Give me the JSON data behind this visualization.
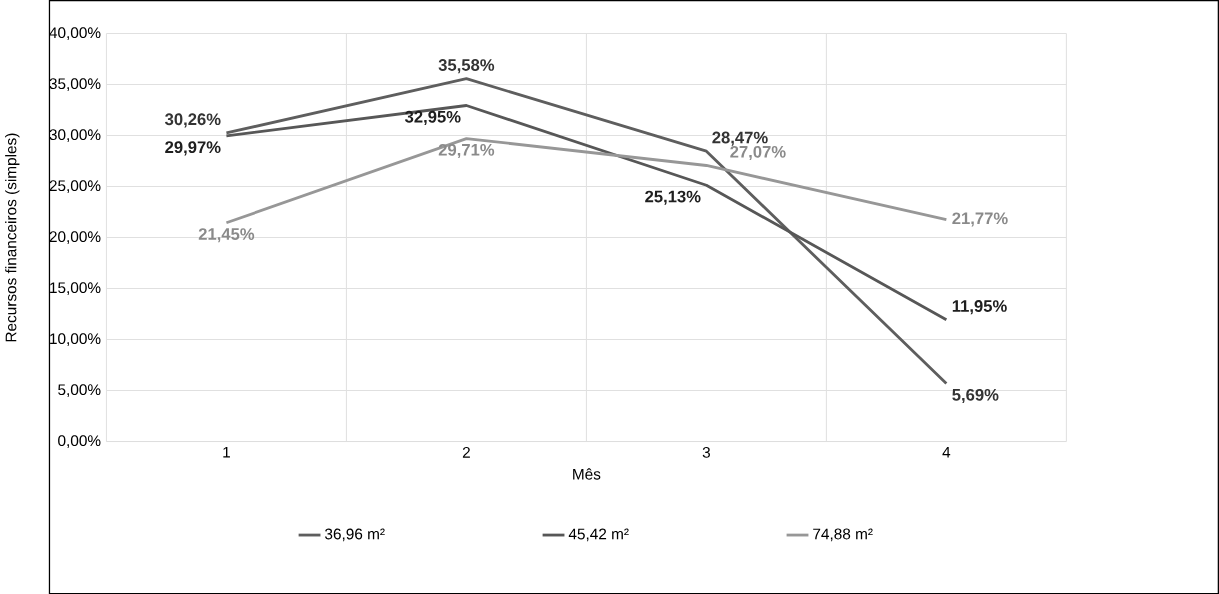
{
  "chart_data": {
    "type": "line",
    "xlabel": "Mês",
    "ylabel": "Recursos financeiros (simples)",
    "categories": [
      "1",
      "2",
      "3",
      "4"
    ],
    "series": [
      {
        "name": "36,96 m²",
        "color": "#5e5e5e",
        "values": [
          30.26,
          35.58,
          28.47,
          5.69
        ],
        "value_labels": [
          "30,26%",
          "35,58%",
          "28,47%",
          "5,69%"
        ]
      },
      {
        "name": "45,42 m²",
        "color": "#575757",
        "values": [
          29.97,
          32.95,
          25.13,
          11.95
        ],
        "value_labels": [
          "29,97%",
          "32,95%",
          "25,13%",
          "11,95%"
        ]
      },
      {
        "name": "74,88 m²",
        "color": "#979797",
        "values": [
          21.45,
          29.71,
          27.07,
          21.77
        ],
        "value_labels": [
          "21,45%",
          "29,71%",
          "27,07%",
          "21,77%"
        ]
      }
    ],
    "ylim": [
      0,
      40
    ],
    "yticks": [
      {
        "value": 0,
        "label": "0,00%"
      },
      {
        "value": 5,
        "label": "5,00%"
      },
      {
        "value": 10,
        "label": "10,00%"
      },
      {
        "value": 15,
        "label": "15,00%"
      },
      {
        "value": 20,
        "label": "20,00%"
      },
      {
        "value": 25,
        "label": "25,00%"
      },
      {
        "value": 30,
        "label": "30,00%"
      },
      {
        "value": 35,
        "label": "35,00%"
      },
      {
        "value": 40,
        "label": "40,00%"
      }
    ],
    "grid": true,
    "legend": "bottom",
    "marker": "none",
    "line_style": "solid"
  }
}
